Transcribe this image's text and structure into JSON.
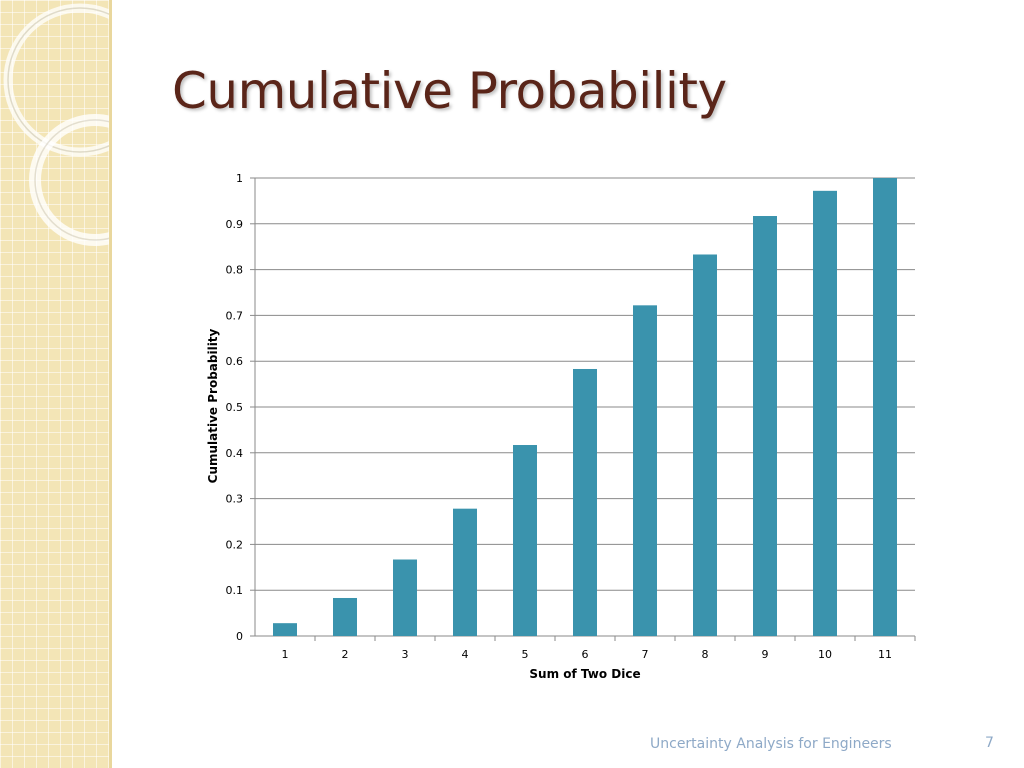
{
  "slide": {
    "title": "Cumulative Probability",
    "footer": "Uncertainty Analysis for Engineers",
    "page_number": "7"
  },
  "colors": {
    "bar": "#3a93ad",
    "title": "#5a2519",
    "footer": "#8ea9c7",
    "gridline": "#8a8a8a",
    "side_panel": "#f3e5b6"
  },
  "chart_data": {
    "type": "bar",
    "title": "",
    "xlabel": "Sum of Two Dice",
    "ylabel": "Cumulative Probability",
    "categories": [
      "1",
      "2",
      "3",
      "4",
      "5",
      "6",
      "7",
      "8",
      "9",
      "10",
      "11"
    ],
    "values": [
      0.028,
      0.083,
      0.167,
      0.278,
      0.417,
      0.583,
      0.722,
      0.833,
      0.917,
      0.972,
      1.0
    ],
    "ylim": [
      0,
      1
    ],
    "yticks": [
      "0",
      "0.1",
      "0.2",
      "0.3",
      "0.4",
      "0.5",
      "0.6",
      "0.7",
      "0.8",
      "0.9",
      "1"
    ],
    "grid": true,
    "legend": "none"
  }
}
